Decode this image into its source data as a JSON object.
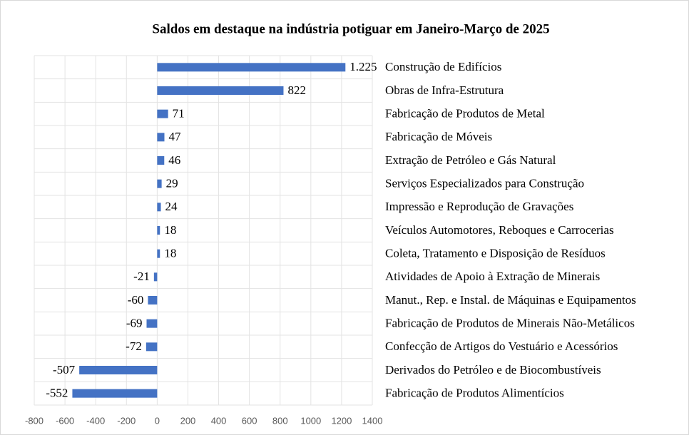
{
  "chart_data": {
    "type": "barh",
    "title": "Saldos em destaque na indústria potiguar em Janeiro-Março de 2025",
    "categories": [
      "Construção de Edifícios",
      "Obras de Infra-Estrutura",
      "Fabricação de Produtos de Metal",
      "Fabricação de Móveis",
      "Extração de Petróleo e Gás Natural",
      "Serviços Especializados para Construção",
      "Impressão e Reprodução de Gravações",
      "Veículos Automotores, Reboques e Carrocerias",
      "Coleta, Tratamento e Disposição de Resíduos",
      "Atividades de Apoio à Extração de Minerais",
      "Manut., Rep. e Instal. de Máquinas e Equipamentos",
      "Fabricação de Produtos de Minerais Não-Metálicos",
      "Confecção de Artigos do Vestuário e Acessórios",
      "Derivados do Petróleo e de Biocombustíveis",
      "Fabricação de Produtos Alimentícios"
    ],
    "values": [
      1225,
      822,
      71,
      47,
      46,
      29,
      24,
      18,
      18,
      -21,
      -60,
      -69,
      -72,
      -507,
      -552
    ],
    "value_labels": [
      "1.225",
      "822",
      "71",
      "47",
      "46",
      "29",
      "24",
      "18",
      "18",
      "-21",
      "-60",
      "-69",
      "-72",
      "-507",
      "-552"
    ],
    "color": "#4472c4",
    "xlim": [
      -800,
      1400
    ],
    "xticks": [
      -800,
      -600,
      -400,
      -200,
      0,
      200,
      400,
      600,
      800,
      1000,
      1200,
      1400
    ],
    "grid": true
  }
}
